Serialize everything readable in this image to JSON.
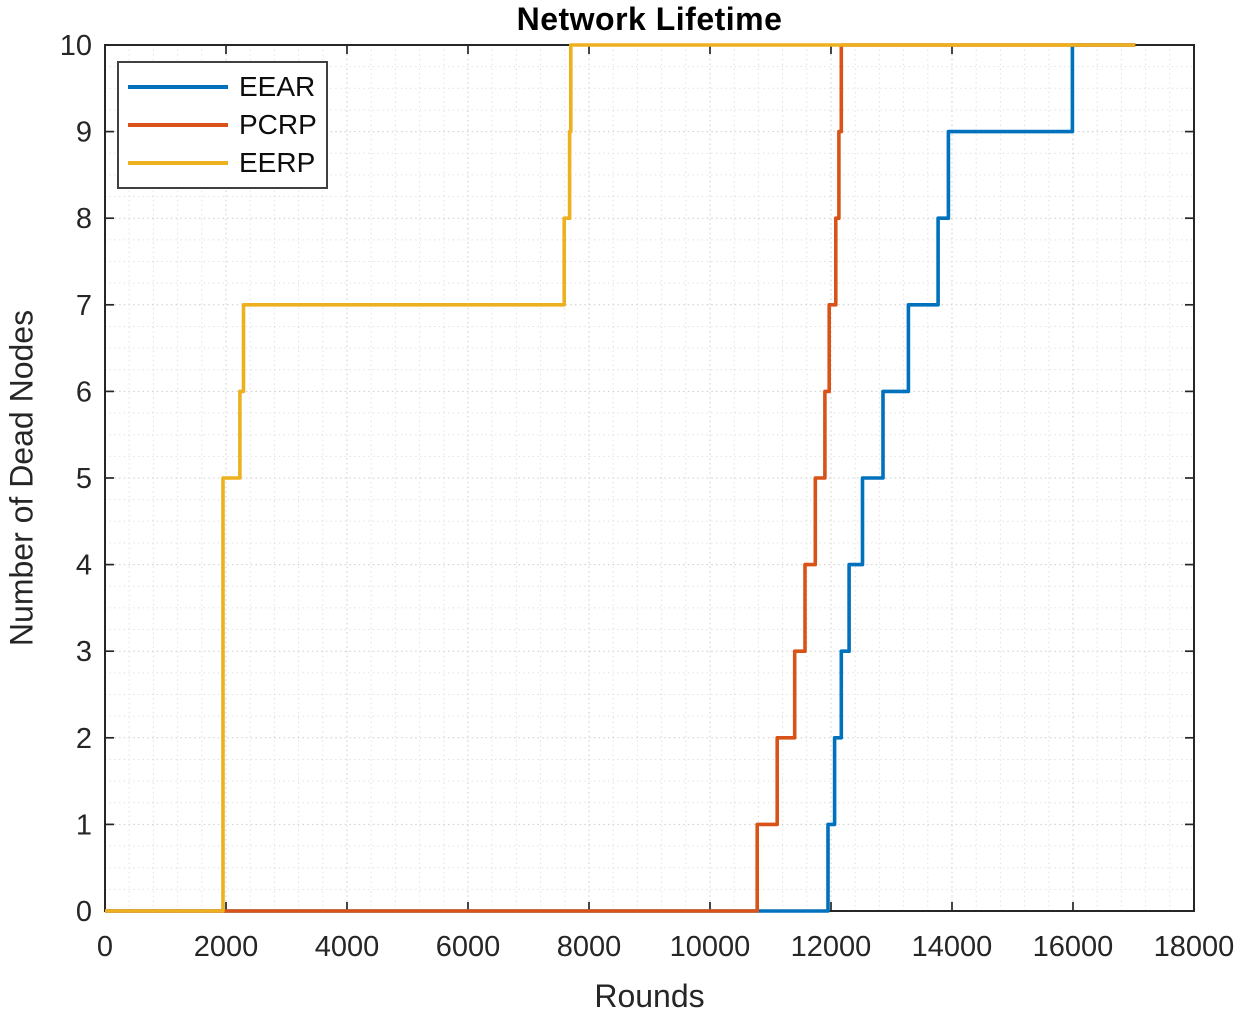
{
  "figure": {
    "title": "Network Lifetime",
    "xlabel": "Rounds",
    "ylabel": "Number of Dead Nodes"
  },
  "chart_data": {
    "type": "line",
    "subtype": "step",
    "title": "Network Lifetime",
    "xlabel": "Rounds",
    "ylabel": "Number of Dead Nodes",
    "xlim": [
      0,
      18000
    ],
    "ylim": [
      0,
      10
    ],
    "xticks": [
      0,
      2000,
      4000,
      6000,
      8000,
      10000,
      12000,
      14000,
      16000,
      18000
    ],
    "yticks": [
      0,
      1,
      2,
      3,
      4,
      5,
      6,
      7,
      8,
      9,
      10
    ],
    "x_minor_step": 400,
    "y_minor_step": 0.25,
    "grid": "on",
    "minor_grid": "on",
    "legend_position": "top-left",
    "axis_color": "#262626",
    "major_grid_color": "#cccccc",
    "minor_grid_color": "#dedede",
    "series": [
      {
        "name": "EEAR",
        "color": "#0072BD",
        "points": [
          [
            0,
            0
          ],
          [
            11950,
            0
          ],
          [
            11950,
            1
          ],
          [
            12060,
            1
          ],
          [
            12060,
            2
          ],
          [
            12170,
            2
          ],
          [
            12170,
            3
          ],
          [
            12300,
            3
          ],
          [
            12300,
            4
          ],
          [
            12520,
            4
          ],
          [
            12520,
            5
          ],
          [
            12860,
            5
          ],
          [
            12860,
            6
          ],
          [
            13280,
            6
          ],
          [
            13280,
            7
          ],
          [
            13770,
            7
          ],
          [
            13770,
            8
          ],
          [
            13940,
            8
          ],
          [
            13940,
            9
          ],
          [
            15990,
            9
          ],
          [
            15990,
            10
          ],
          [
            17030,
            10
          ]
        ]
      },
      {
        "name": "PCRP",
        "color": "#D95319",
        "points": [
          [
            0,
            0
          ],
          [
            10780,
            0
          ],
          [
            10780,
            1
          ],
          [
            11110,
            1
          ],
          [
            11110,
            2
          ],
          [
            11400,
            2
          ],
          [
            11400,
            3
          ],
          [
            11570,
            3
          ],
          [
            11570,
            4
          ],
          [
            11740,
            4
          ],
          [
            11740,
            5
          ],
          [
            11900,
            5
          ],
          [
            11900,
            6
          ],
          [
            11970,
            6
          ],
          [
            11970,
            7
          ],
          [
            12080,
            7
          ],
          [
            12080,
            8
          ],
          [
            12130,
            8
          ],
          [
            12130,
            9
          ],
          [
            12170,
            9
          ],
          [
            12170,
            10
          ],
          [
            17030,
            10
          ]
        ]
      },
      {
        "name": "EERP",
        "color": "#EDB120",
        "points": [
          [
            0,
            0
          ],
          [
            1950,
            0
          ],
          [
            1950,
            5
          ],
          [
            2230,
            5
          ],
          [
            2230,
            6
          ],
          [
            2290,
            6
          ],
          [
            2290,
            7
          ],
          [
            7590,
            7
          ],
          [
            7590,
            8
          ],
          [
            7680,
            8
          ],
          [
            7680,
            9
          ],
          [
            7700,
            9
          ],
          [
            7700,
            10
          ],
          [
            17030,
            10
          ]
        ]
      }
    ]
  }
}
